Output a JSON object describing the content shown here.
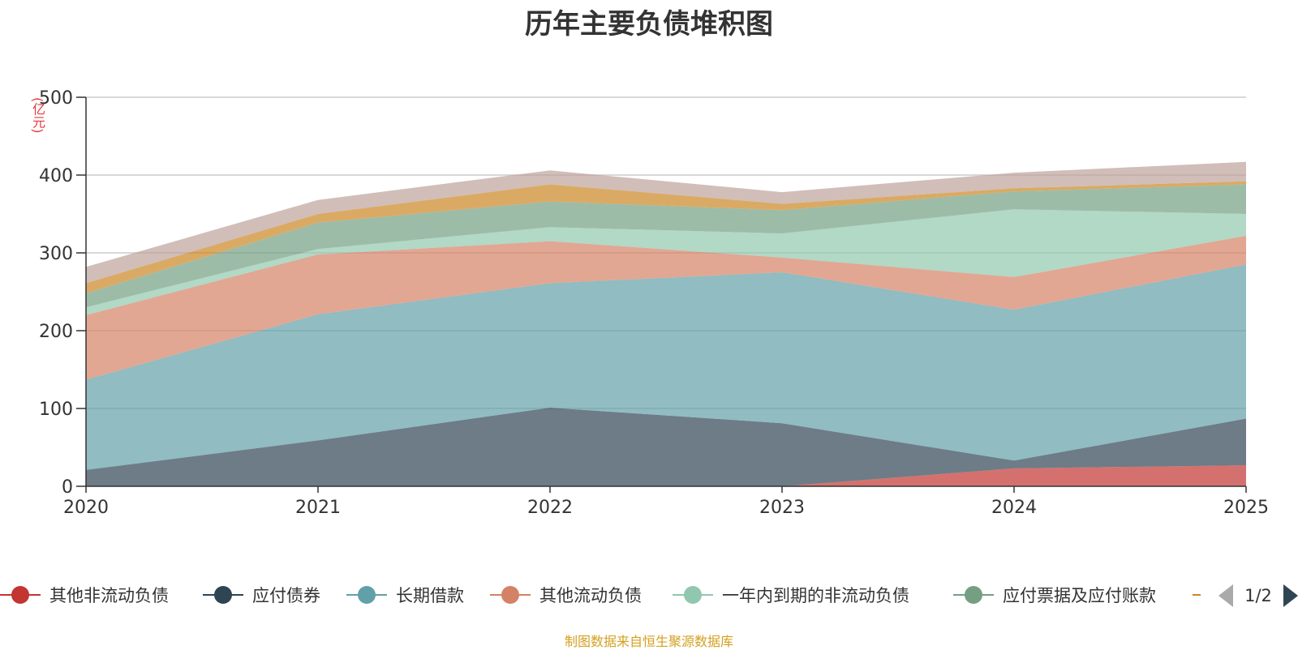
{
  "chart_data": {
    "type": "area",
    "stacked": true,
    "title": "历年主要负债堆积图",
    "ylabel": "(亿元)",
    "xlabel": "",
    "x": [
      "2020",
      "2021",
      "2022",
      "2023",
      "2024",
      "2025"
    ],
    "ylim": [
      0,
      500
    ],
    "yticks": [
      0,
      100,
      200,
      300,
      400,
      500
    ],
    "grid": true,
    "series": [
      {
        "name": "其他非流动负债",
        "color": "#c23531",
        "values": [
          0,
          0,
          0,
          0,
          23,
          27
        ]
      },
      {
        "name": "应付债券",
        "color": "#2f4554",
        "values": [
          21,
          59,
          101,
          81,
          10,
          60
        ]
      },
      {
        "name": "长期借款",
        "color": "#61a0a8",
        "values": [
          116,
          162,
          160,
          194,
          194,
          198
        ]
      },
      {
        "name": "其他流动负债",
        "color": "#d48265",
        "values": [
          83,
          77,
          54,
          19,
          42,
          37
        ]
      },
      {
        "name": "一年内到期的非流动负债",
        "color": "#91c7ae",
        "values": [
          10,
          7,
          18,
          31,
          87,
          28
        ]
      },
      {
        "name": "应付票据及应付账款",
        "color": "#749f83",
        "values": [
          18,
          34,
          33,
          30,
          23,
          38
        ]
      },
      {
        "name": "",
        "color": "#ca8622",
        "values": [
          13,
          11,
          22,
          8,
          4,
          4
        ]
      },
      {
        "name": "",
        "color": "#bda29a",
        "values": [
          21,
          18,
          18,
          15,
          20,
          25
        ]
      }
    ],
    "legend": {
      "items": [
        "其他非流动负债",
        "应付债券",
        "长期借款",
        "其他流动负债",
        "一年内到期的非流动负债",
        "应付票据及应付账款",
        ""
      ],
      "page": "1/2"
    }
  },
  "source_note": "制图数据来自恒生聚源数据库"
}
